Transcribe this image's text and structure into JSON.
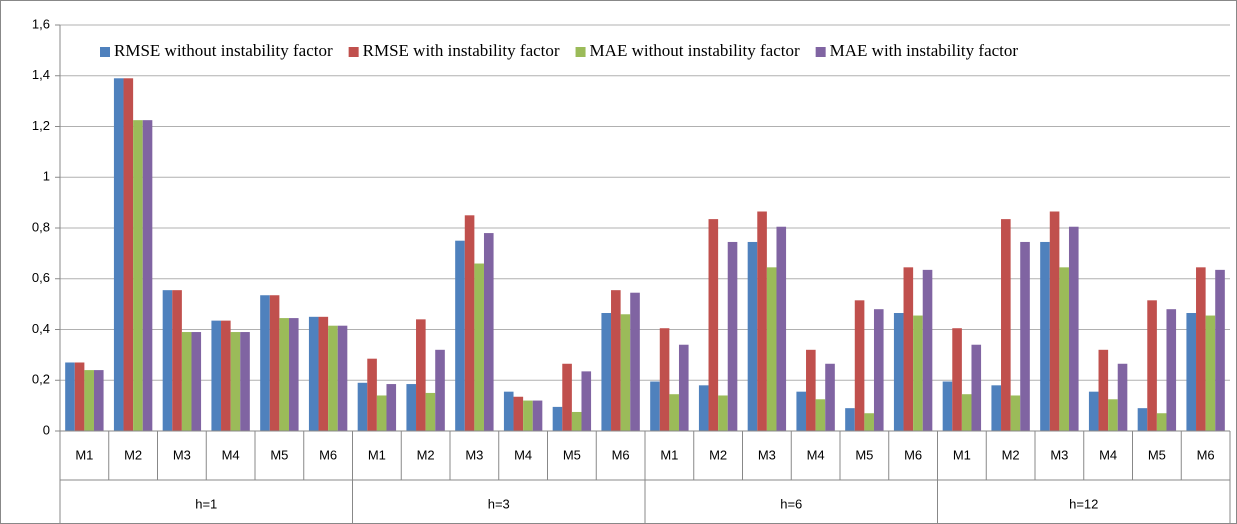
{
  "chart_data": {
    "type": "bar",
    "categories": [
      "M1",
      "M2",
      "M3",
      "M4",
      "M5",
      "M6",
      "M1",
      "M2",
      "M3",
      "M4",
      "M5",
      "M6",
      "M1",
      "M2",
      "M3",
      "M4",
      "M5",
      "M6",
      "M1",
      "M2",
      "M3",
      "M4",
      "M5",
      "M6"
    ],
    "groups": [
      "h=1",
      "h=3",
      "h=6",
      "h=12"
    ],
    "series": [
      {
        "name": "RMSE without instability factor",
        "color": "#4f81bd",
        "values": [
          0.27,
          1.39,
          0.555,
          0.435,
          0.535,
          0.45,
          0.19,
          0.185,
          0.75,
          0.155,
          0.095,
          0.465,
          0.195,
          0.18,
          0.745,
          0.155,
          0.09,
          0.465,
          0.195,
          0.18,
          0.745,
          0.155,
          0.09,
          0.465
        ]
      },
      {
        "name": "RMSE with instability factor",
        "color": "#c0504d",
        "values": [
          0.27,
          1.39,
          0.555,
          0.435,
          0.535,
          0.45,
          0.285,
          0.44,
          0.85,
          0.135,
          0.265,
          0.555,
          0.405,
          0.835,
          0.865,
          0.32,
          0.515,
          0.645,
          0.405,
          0.835,
          0.865,
          0.32,
          0.515,
          0.645
        ]
      },
      {
        "name": "MAE without instability factor",
        "color": "#9bbb59",
        "values": [
          0.24,
          1.225,
          0.39,
          0.39,
          0.445,
          0.415,
          0.14,
          0.15,
          0.66,
          0.12,
          0.075,
          0.46,
          0.145,
          0.14,
          0.645,
          0.125,
          0.07,
          0.455,
          0.145,
          0.14,
          0.645,
          0.125,
          0.07,
          0.455
        ]
      },
      {
        "name": "MAE with instability factor",
        "color": "#8064a2",
        "values": [
          0.24,
          1.225,
          0.39,
          0.39,
          0.445,
          0.415,
          0.185,
          0.32,
          0.78,
          0.12,
          0.235,
          0.545,
          0.34,
          0.745,
          0.805,
          0.265,
          0.48,
          0.635,
          0.34,
          0.745,
          0.805,
          0.265,
          0.48,
          0.635
        ]
      }
    ],
    "ylim": [
      0,
      1.6
    ],
    "yticks": [
      0,
      {
        "value": 0.2,
        "label": "0,2"
      },
      {
        "value": 0.4,
        "label": "0,4"
      },
      {
        "value": 0.6,
        "label": "0,6"
      },
      {
        "value": 0.8,
        "label": "0,8"
      },
      1,
      {
        "value": 1.2,
        "label": "1,2"
      },
      {
        "value": 1.4,
        "label": "1,4"
      },
      {
        "value": 1.6,
        "label": "1,6"
      }
    ],
    "grid": true,
    "legend": "top"
  }
}
